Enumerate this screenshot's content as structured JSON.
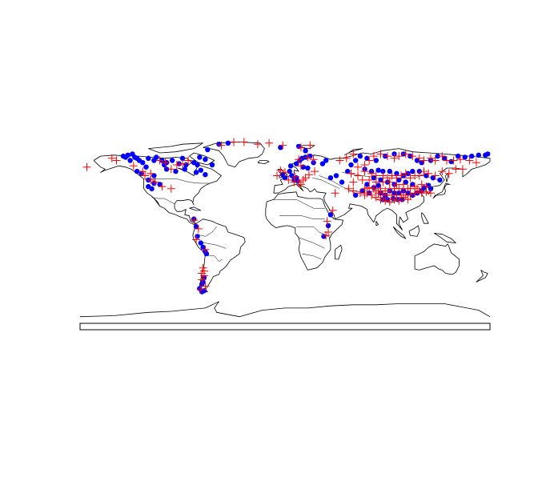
{
  "map": {
    "projection": "equirectangular",
    "extent": {
      "lon": [
        -180,
        180
      ],
      "lat": [
        -90,
        90
      ]
    },
    "land_fill": "#ffffff",
    "border_color": "#000000",
    "marker_styles": {
      "dot": {
        "shape": "filled-circle",
        "color": "#0000ff"
      },
      "cross": {
        "shape": "plus",
        "color": "#ff0000"
      }
    }
  },
  "chart_data": {
    "type": "scatter",
    "title": "",
    "xlabel": "",
    "ylabel": "",
    "xlim": [
      -180,
      180
    ],
    "ylim": [
      -90,
      90
    ],
    "grid": false,
    "series": [
      {
        "marker": "dot",
        "color": "#0000ff",
        "points": [
          [
            -142,
            70
          ],
          [
            -140,
            69
          ],
          [
            -138,
            71
          ],
          [
            -136,
            66
          ],
          [
            -132,
            69
          ],
          [
            -130,
            68
          ],
          [
            -128,
            66
          ],
          [
            -125,
            64
          ],
          [
            -120,
            68
          ],
          [
            -115,
            66
          ],
          [
            -113,
            69
          ],
          [
            -108,
            66
          ],
          [
            -104,
            64
          ],
          [
            -99,
            66
          ],
          [
            -93,
            63
          ],
          [
            -87,
            62
          ],
          [
            -80,
            64
          ],
          [
            -74,
            57
          ],
          [
            -70,
            53
          ],
          [
            -77,
            62
          ],
          [
            -90,
            68
          ],
          [
            -122,
            60
          ],
          [
            -130,
            56
          ],
          [
            -126,
            54
          ],
          [
            -115,
            52
          ],
          [
            -104,
            58
          ],
          [
            -96,
            56
          ],
          [
            -88,
            58
          ],
          [
            -106,
            62
          ],
          [
            -78,
            55
          ],
          [
            -64,
            62
          ],
          [
            -70,
            67
          ],
          [
            -75,
            69
          ],
          [
            -134,
            72
          ],
          [
            -68,
            76
          ],
          [
            -58,
            81
          ],
          [
            -50,
            82
          ],
          [
            -4,
            78
          ],
          [
            18,
            75
          ],
          [
            12,
            79
          ],
          [
            5,
            61
          ],
          [
            10,
            63
          ],
          [
            15,
            68
          ],
          [
            18,
            69
          ],
          [
            22,
            70
          ],
          [
            13,
            66
          ],
          [
            16,
            60
          ],
          [
            20,
            59
          ],
          [
            4,
            56
          ],
          [
            6,
            52
          ],
          [
            0,
            50
          ],
          [
            -2,
            53
          ],
          [
            8,
            48
          ],
          [
            10,
            50
          ],
          [
            11,
            47
          ],
          [
            33,
            63
          ],
          [
            36,
            66
          ],
          [
            25,
            64
          ],
          [
            40,
            50
          ],
          [
            45,
            52
          ],
          [
            50,
            46
          ],
          [
            55,
            56
          ],
          [
            58,
            62
          ],
          [
            62,
            66
          ],
          [
            66,
            70
          ],
          [
            72,
            68
          ],
          [
            80,
            66
          ],
          [
            88,
            70
          ],
          [
            96,
            72
          ],
          [
            104,
            72
          ],
          [
            110,
            70
          ],
          [
            116,
            66
          ],
          [
            120,
            64
          ],
          [
            128,
            66
          ],
          [
            134,
            70
          ],
          [
            140,
            68
          ],
          [
            146,
            65
          ],
          [
            152,
            70
          ],
          [
            158,
            69
          ],
          [
            164,
            70
          ],
          [
            170,
            71
          ],
          [
            176,
            71
          ],
          [
            178,
            72
          ],
          [
            70,
            58
          ],
          [
            76,
            56
          ],
          [
            82,
            57
          ],
          [
            86,
            56
          ],
          [
            92,
            56
          ],
          [
            98,
            54
          ],
          [
            104,
            52
          ],
          [
            108,
            54
          ],
          [
            112,
            56
          ],
          [
            118,
            56
          ],
          [
            124,
            52
          ],
          [
            130,
            50
          ],
          [
            136,
            48
          ],
          [
            78,
            50
          ],
          [
            84,
            48
          ],
          [
            90,
            46
          ],
          [
            96,
            44
          ],
          [
            100,
            48
          ],
          [
            106,
            46
          ],
          [
            112,
            44
          ],
          [
            72,
            44
          ],
          [
            78,
            41
          ],
          [
            82,
            43
          ],
          [
            84,
            36
          ],
          [
            88,
            34
          ],
          [
            92,
            38
          ],
          [
            96,
            36
          ],
          [
            100,
            36
          ],
          [
            104,
            38
          ],
          [
            108,
            36
          ],
          [
            112,
            34
          ],
          [
            116,
            36
          ],
          [
            120,
            38
          ],
          [
            122,
            41
          ],
          [
            126,
            43
          ],
          [
            128,
            40
          ],
          [
            86,
            30
          ],
          [
            90,
            30
          ],
          [
            95,
            31
          ],
          [
            99,
            30
          ],
          [
            103,
            30
          ],
          [
            68,
            38
          ],
          [
            74,
            36
          ],
          [
            62,
            34
          ],
          [
            40,
            16
          ],
          [
            38,
            6
          ],
          [
            34,
            -4
          ],
          [
            -80,
            12
          ],
          [
            -78,
            5
          ],
          [
            -77,
            -4
          ],
          [
            -74,
            -10
          ],
          [
            -72,
            -14
          ],
          [
            -70,
            -18
          ],
          [
            -69,
            -20
          ],
          [
            -71,
            -42
          ],
          [
            -72,
            -46
          ],
          [
            -73,
            -48
          ],
          [
            -75,
            -52
          ],
          [
            -71,
            -54
          ],
          [
            -73,
            -55
          ],
          [
            -120,
            48
          ],
          [
            -115,
            45
          ],
          [
            -110,
            44
          ],
          [
            -117,
            40
          ],
          [
            -120,
            42
          ]
        ]
      },
      {
        "marker": "cross",
        "color": "#ff0000",
        "points": [
          [
            -174,
            60
          ],
          [
            -152,
            68
          ],
          [
            -148,
            66
          ],
          [
            -133,
            61
          ],
          [
            -125,
            56
          ],
          [
            -118,
            54
          ],
          [
            -105,
            64
          ],
          [
            -100,
            58
          ],
          [
            -95,
            62
          ],
          [
            -90,
            63
          ],
          [
            -110,
            66
          ],
          [
            -85,
            66
          ],
          [
            -123,
            52
          ],
          [
            -118,
            48
          ],
          [
            -114,
            46
          ],
          [
            -108,
            42
          ],
          [
            -100,
            40
          ],
          [
            -56,
            80
          ],
          [
            -45,
            83
          ],
          [
            -36,
            83
          ],
          [
            -24,
            81
          ],
          [
            -14,
            82
          ],
          [
            -2,
            80
          ],
          [
            14,
            78
          ],
          [
            22,
            80
          ],
          [
            -80,
            11
          ],
          [
            -76,
            3
          ],
          [
            -78,
            -7
          ],
          [
            -70,
            -16
          ],
          [
            -72,
            -33
          ],
          [
            -71,
            -36
          ],
          [
            -73,
            -38
          ],
          [
            -71,
            -40
          ],
          [
            -73,
            -44
          ],
          [
            -70,
            -50
          ],
          [
            -74,
            -53
          ],
          [
            -4,
            57
          ],
          [
            0,
            55
          ],
          [
            -7,
            52
          ],
          [
            3,
            48
          ],
          [
            9,
            51
          ],
          [
            12,
            46
          ],
          [
            8,
            46
          ],
          [
            16,
            48
          ],
          [
            18,
            50
          ],
          [
            14,
            44
          ],
          [
            21,
            53
          ],
          [
            26,
            56
          ],
          [
            14,
            61
          ],
          [
            12,
            67
          ],
          [
            20,
            69
          ],
          [
            25,
            67
          ],
          [
            38,
            0
          ],
          [
            36,
            -3
          ],
          [
            37,
            10
          ],
          [
            42,
            20
          ],
          [
            44,
            36
          ],
          [
            48,
            66
          ],
          [
            54,
            68
          ],
          [
            60,
            72
          ],
          [
            64,
            60
          ],
          [
            70,
            62
          ],
          [
            74,
            66
          ],
          [
            78,
            70
          ],
          [
            84,
            72
          ],
          [
            90,
            70
          ],
          [
            96,
            68
          ],
          [
            100,
            70
          ],
          [
            106,
            72
          ],
          [
            112,
            70
          ],
          [
            118,
            68
          ],
          [
            122,
            66
          ],
          [
            128,
            68
          ],
          [
            132,
            66
          ],
          [
            138,
            70
          ],
          [
            142,
            66
          ],
          [
            148,
            66
          ],
          [
            154,
            67
          ],
          [
            162,
            66
          ],
          [
            168,
            64
          ],
          [
            58,
            54
          ],
          [
            64,
            52
          ],
          [
            70,
            56
          ],
          [
            76,
            54
          ],
          [
            80,
            52
          ],
          [
            86,
            52
          ],
          [
            90,
            50
          ],
          [
            94,
            52
          ],
          [
            98,
            50
          ],
          [
            102,
            52
          ],
          [
            106,
            54
          ],
          [
            110,
            50
          ],
          [
            114,
            52
          ],
          [
            118,
            52
          ],
          [
            122,
            56
          ],
          [
            126,
            54
          ],
          [
            132,
            52
          ],
          [
            138,
            56
          ],
          [
            144,
            54
          ],
          [
            150,
            58
          ],
          [
            156,
            58
          ],
          [
            60,
            46
          ],
          [
            68,
            48
          ],
          [
            74,
            48
          ],
          [
            80,
            46
          ],
          [
            86,
            46
          ],
          [
            92,
            46
          ],
          [
            98,
            44
          ],
          [
            104,
            44
          ],
          [
            108,
            40
          ],
          [
            114,
            42
          ],
          [
            120,
            44
          ],
          [
            124,
            42
          ],
          [
            70,
            40
          ],
          [
            74,
            41
          ],
          [
            78,
            40
          ],
          [
            80,
            38
          ],
          [
            84,
            40
          ],
          [
            88,
            38
          ],
          [
            92,
            40
          ],
          [
            96,
            40
          ],
          [
            100,
            40
          ],
          [
            104,
            40
          ],
          [
            110,
            40
          ],
          [
            116,
            40
          ],
          [
            118,
            38
          ],
          [
            124,
            37
          ],
          [
            72,
            36
          ],
          [
            76,
            34
          ],
          [
            80,
            32
          ],
          [
            82,
            36
          ],
          [
            86,
            34
          ],
          [
            90,
            34
          ],
          [
            94,
            34
          ],
          [
            98,
            34
          ],
          [
            102,
            34
          ],
          [
            106,
            34
          ],
          [
            110,
            34
          ],
          [
            114,
            36
          ],
          [
            120,
            36
          ],
          [
            128,
            36
          ],
          [
            84,
            30
          ],
          [
            88,
            29
          ],
          [
            92,
            28
          ],
          [
            96,
            30
          ],
          [
            100,
            29
          ],
          [
            104,
            32
          ],
          [
            108,
            30
          ],
          [
            66,
            36
          ],
          [
            70,
            34
          ],
          [
            60,
            38
          ],
          [
            56,
            40
          ]
        ]
      }
    ]
  }
}
